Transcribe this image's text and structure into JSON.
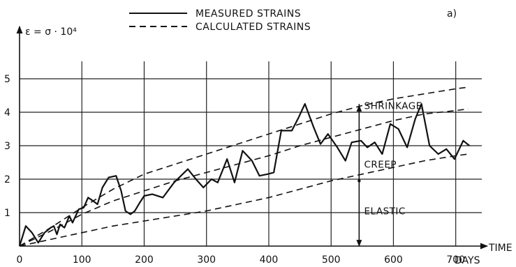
{
  "chart_data": {
    "type": "line",
    "panel_label": "a)",
    "ylabel": "ε = σ · 10⁴",
    "xlabel": "TIME",
    "x_unit": "DAYS",
    "xlim": [
      0,
      725
    ],
    "ylim": [
      0,
      5
    ],
    "x_ticks": [
      0,
      100,
      200,
      300,
      400,
      500,
      600,
      700
    ],
    "y_ticks": [
      1,
      2,
      3,
      4,
      5
    ],
    "grid": true,
    "legend": {
      "placement": "top",
      "entries": [
        {
          "label": "MEASURED STRAINS",
          "style": "solid"
        },
        {
          "label": "CALCULATED STRAINS",
          "style": "dashed"
        }
      ]
    },
    "series": [
      {
        "name": "MEASURED STRAINS",
        "style": "solid",
        "x": [
          0,
          10,
          20,
          30,
          40,
          50,
          55,
          60,
          65,
          72,
          80,
          85,
          95,
          103,
          110,
          118,
          125,
          133,
          143,
          155,
          163,
          170,
          178,
          185,
          193,
          200,
          213,
          230,
          248,
          270,
          283,
          295,
          308,
          318,
          333,
          345,
          358,
          373,
          385,
          398,
          408,
          420,
          437,
          448,
          458,
          472,
          483,
          495,
          510,
          523,
          533,
          548,
          558,
          570,
          582,
          595,
          608,
          622,
          635,
          645,
          658,
          672,
          685,
          698,
          712,
          722
        ],
        "y": [
          0,
          0.6,
          0.4,
          0.1,
          0.4,
          0.55,
          0.6,
          0.35,
          0.65,
          0.55,
          0.9,
          0.7,
          1.1,
          1.15,
          1.45,
          1.35,
          1.25,
          1.75,
          2.05,
          2.1,
          1.65,
          1.05,
          0.95,
          1.05,
          1.3,
          1.5,
          1.55,
          1.45,
          1.9,
          2.3,
          2.0,
          1.75,
          2.0,
          1.9,
          2.6,
          1.9,
          2.85,
          2.55,
          2.1,
          2.15,
          2.2,
          3.45,
          3.45,
          3.85,
          4.25,
          3.55,
          3.05,
          3.35,
          2.95,
          2.55,
          3.1,
          3.15,
          2.95,
          3.1,
          2.75,
          3.65,
          3.5,
          2.95,
          3.8,
          4.25,
          3.0,
          2.75,
          2.9,
          2.6,
          3.15,
          3.0
        ]
      },
      {
        "name": "CALCULATED STRAINS (upper)",
        "style": "dashed",
        "x": [
          0,
          50,
          100,
          150,
          200,
          250,
          300,
          350,
          400,
          450,
          500,
          550,
          600,
          650,
          700,
          720
        ],
        "y": [
          0,
          0.55,
          1.15,
          1.7,
          2.15,
          2.45,
          2.75,
          3.05,
          3.35,
          3.65,
          3.95,
          4.2,
          4.4,
          4.55,
          4.7,
          4.75
        ]
      },
      {
        "name": "CALCULATED STRAINS (middle)",
        "style": "dashed",
        "x": [
          0,
          50,
          100,
          150,
          200,
          250,
          300,
          350,
          400,
          450,
          500,
          550,
          600,
          650,
          700,
          720
        ],
        "y": [
          0,
          0.45,
          0.95,
          1.35,
          1.65,
          1.95,
          2.2,
          2.45,
          2.7,
          3.0,
          3.25,
          3.5,
          3.75,
          3.95,
          4.05,
          4.1
        ]
      },
      {
        "name": "CALCULATED STRAINS (lower)",
        "style": "dashed",
        "x": [
          0,
          50,
          100,
          150,
          200,
          250,
          300,
          350,
          400,
          450,
          500,
          550,
          600,
          650,
          700,
          720
        ],
        "y": [
          0,
          0.2,
          0.4,
          0.6,
          0.75,
          0.9,
          1.05,
          1.25,
          1.45,
          1.7,
          1.95,
          2.15,
          2.35,
          2.55,
          2.7,
          2.75
        ]
      }
    ],
    "annotations": [
      {
        "text": "SHRINKAGE",
        "x": 553,
        "y": 4.2
      },
      {
        "text": "CREEP",
        "x": 553,
        "y": 2.45
      },
      {
        "text": "ELASTIC",
        "x": 553,
        "y": 1.05
      }
    ],
    "marker_x": 545,
    "arrows": [
      {
        "from": 1.95,
        "to": 4.2
      },
      {
        "from": 1.95,
        "to": 0
      }
    ]
  }
}
